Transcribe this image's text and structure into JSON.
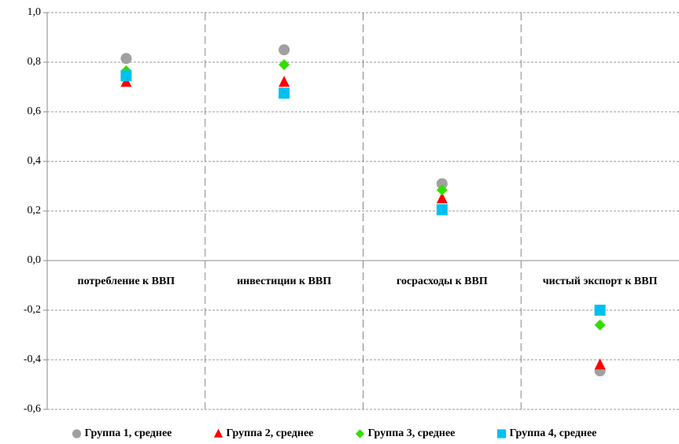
{
  "chart_data": {
    "type": "scatter",
    "categories": [
      "потребление к ВВП",
      "инвестиции к ВВП",
      "госрасходы к ВВП",
      "чистый экспорт к ВВП"
    ],
    "series": [
      {
        "name": "Группа 1, среднее",
        "color": "#a0a0a0",
        "marker": "circle",
        "values": [
          0.815,
          0.85,
          0.31,
          -0.445
        ]
      },
      {
        "name": "Группа 2, среднее",
        "color": "#ff0000",
        "marker": "triangle",
        "values": [
          0.72,
          0.72,
          0.25,
          -0.42
        ]
      },
      {
        "name": "Группа 3, среднее",
        "color": "#33dd00",
        "marker": "diamond",
        "values": [
          0.765,
          0.79,
          0.285,
          -0.26
        ]
      },
      {
        "name": "Группа 4, среднее",
        "color": "#00c0f0",
        "marker": "square",
        "values": [
          0.745,
          0.675,
          0.205,
          -0.2
        ]
      }
    ],
    "ylim": [
      -0.6,
      1.0
    ],
    "yticks": [
      {
        "value": -0.6,
        "label": "-0,6"
      },
      {
        "value": -0.4,
        "label": "-0,4"
      },
      {
        "value": -0.2,
        "label": "-0,2"
      },
      {
        "value": 0,
        "label": "0,0"
      },
      {
        "value": 0.2,
        "label": "0,2"
      },
      {
        "value": 0.4,
        "label": "0,4"
      },
      {
        "value": 0.6,
        "label": "0,6"
      },
      {
        "value": 0.8,
        "label": "0,8"
      },
      {
        "value": 1.0,
        "label": "1,0"
      }
    ],
    "grid": true,
    "legend": "bottom"
  }
}
